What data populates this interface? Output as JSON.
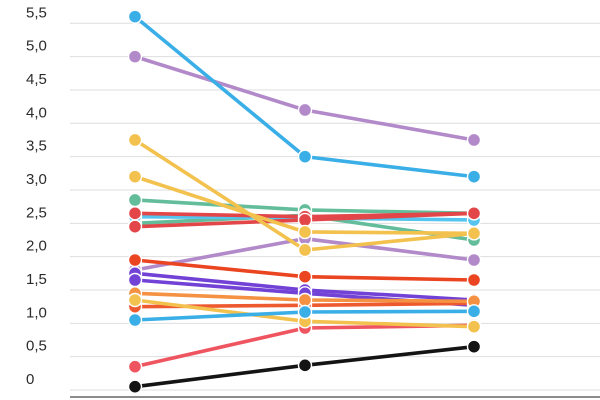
{
  "chart_data": {
    "type": "line",
    "title": "",
    "subtitle": "",
    "legend": "none",
    "x_points": 3,
    "x_axis": {
      "labels_visible": false,
      "tick_labels": [
        "",
        "",
        ""
      ]
    },
    "y_axis": {
      "min": 0,
      "max": 5.5,
      "tick_step": 0.5,
      "decimal_separator": ",",
      "tick_labels": [
        "0",
        "0,5",
        "1,0",
        "1,5",
        "2,0",
        "2,5",
        "3,0",
        "3,5",
        "4,0",
        "4,5",
        "5,0",
        "5,5"
      ]
    },
    "grid": {
      "horizontal": true,
      "vertical": false,
      "line_color": "#dedede",
      "baseline_color": "#8c8c8c"
    },
    "style": {
      "dot_radius": 6.5,
      "line_width": 3.6,
      "dot_halo_color": "#ffffff",
      "label_color": "#2b2b2b"
    },
    "series": [
      {
        "name": "lavender-1",
        "color": "#b289c9",
        "values": [
          5.0,
          4.2,
          3.75
        ]
      },
      {
        "name": "teal-1",
        "color": "#63bd9b",
        "values": [
          2.85,
          2.7,
          2.65
        ]
      },
      {
        "name": "teal-2",
        "color": "#63bd9b",
        "values": [
          2.5,
          2.62,
          2.25
        ]
      },
      {
        "name": "cyan-1",
        "color": "#55c4ee",
        "values": [
          2.6,
          2.58,
          2.55
        ]
      },
      {
        "name": "red-1",
        "color": "#e24648",
        "values": [
          2.65,
          2.6,
          2.65
        ]
      },
      {
        "name": "red-2",
        "color": "#e24648",
        "values": [
          2.45,
          2.55,
          2.65
        ]
      },
      {
        "name": "lavender-2",
        "color": "#b289c9",
        "values": [
          1.8,
          2.27,
          1.95
        ]
      },
      {
        "name": "violet-1",
        "color": "#7242d6",
        "values": [
          1.75,
          1.5,
          1.35
        ]
      },
      {
        "name": "violet-2",
        "color": "#7242d6",
        "values": [
          1.65,
          1.45,
          1.27
        ]
      },
      {
        "name": "orange-red-1",
        "color": "#ee5a30",
        "values": [
          1.25,
          1.27,
          1.3
        ]
      },
      {
        "name": "orange-1",
        "color": "#f49142",
        "values": [
          1.45,
          1.35,
          1.33
        ]
      },
      {
        "name": "pink-1",
        "color": "#ef5560",
        "values": [
          0.35,
          0.93,
          0.97
        ]
      },
      {
        "name": "yellow-1",
        "color": "#f3c14e",
        "values": [
          3.75,
          2.1,
          2.35
        ]
      },
      {
        "name": "yellow-2",
        "color": "#f3c14e",
        "values": [
          3.2,
          2.37,
          2.35
        ]
      },
      {
        "name": "yellow-3",
        "color": "#f3c14e",
        "values": [
          1.35,
          1.03,
          0.95
        ]
      },
      {
        "name": "vermilion-1",
        "color": "#ea4420",
        "values": [
          1.95,
          1.7,
          1.65
        ]
      },
      {
        "name": "sky-blue-1",
        "color": "#3aaee6",
        "values": [
          5.6,
          3.5,
          3.2
        ]
      },
      {
        "name": "sky-blue-2",
        "color": "#3aaee6",
        "values": [
          1.05,
          1.17,
          1.18
        ]
      },
      {
        "name": "black-1",
        "color": "#141414",
        "values": [
          0.05,
          0.37,
          0.65
        ]
      }
    ]
  }
}
